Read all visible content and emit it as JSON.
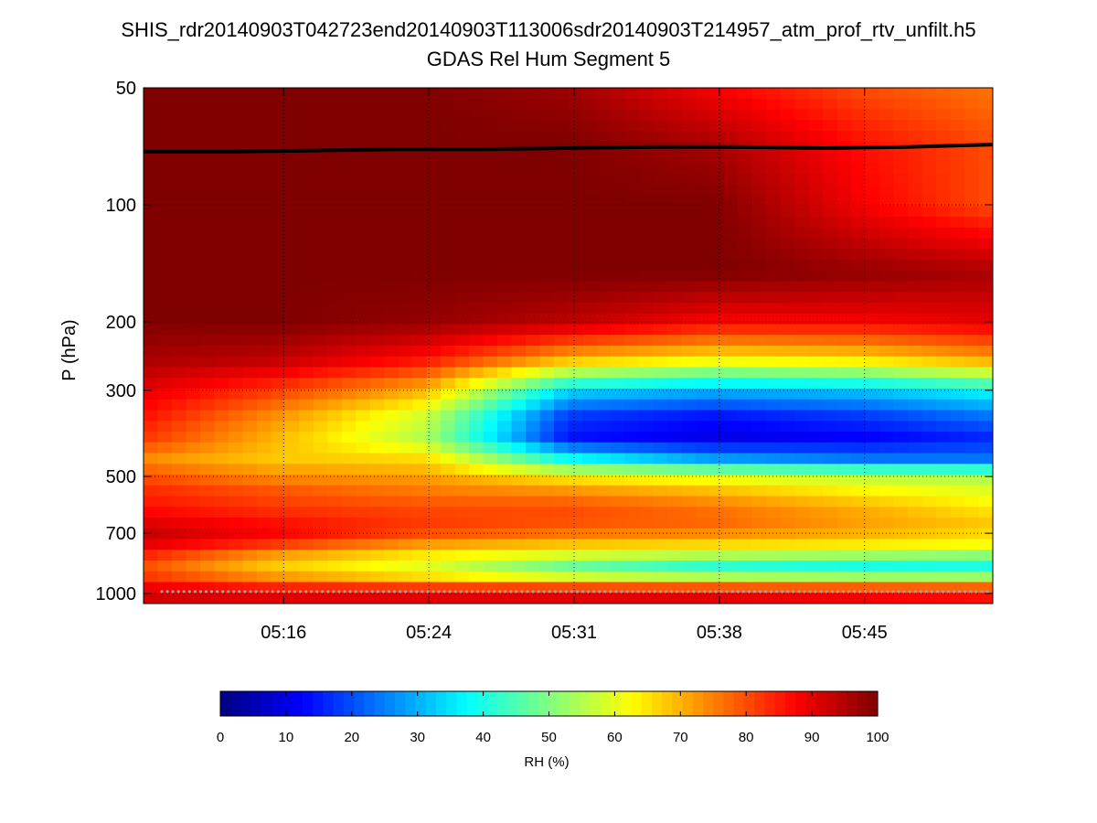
{
  "chart_data": {
    "type": "heatmap",
    "title": "SHIS_rdr20140903T042723end20140903T113006sdr20140903T214957_atm_prof_rtv_unfilt.h5",
    "subtitle": "GDAS Rel Hum Segment 5",
    "xlabel": "",
    "ylabel": "P (hPa)",
    "y_scale": "log",
    "y_reversed": true,
    "ylim": [
      1000,
      50
    ],
    "x_ticks": [
      "05:16",
      "05:24",
      "05:31",
      "05:38",
      "05:45"
    ],
    "y_ticks": [
      50,
      100,
      200,
      300,
      500,
      700,
      1000
    ],
    "grid": true,
    "colormap": "jet",
    "colorbar": {
      "label": "RH (%)",
      "range": [
        0,
        100
      ],
      "ticks": [
        0,
        10,
        20,
        30,
        40,
        50,
        60,
        70,
        80,
        90,
        100
      ],
      "orientation": "horizontal"
    },
    "time_fraction_start": 0.0,
    "time_fraction_end": 1.0,
    "rh_profiles": {
      "pressure_hPa": [
        1000,
        950,
        900,
        850,
        800,
        750,
        700,
        650,
        600,
        550,
        500,
        450,
        400,
        350,
        300,
        250,
        200,
        150,
        100,
        70,
        50
      ],
      "columns": [
        {
          "time_fraction": 0.0,
          "rh": [
            92,
            88,
            82,
            80,
            84,
            90,
            93,
            90,
            86,
            84,
            80,
            74,
            82,
            86,
            90,
            96,
            100,
            100,
            100,
            100,
            100
          ]
        },
        {
          "time_fraction": 0.15,
          "rh": [
            90,
            82,
            72,
            68,
            72,
            82,
            88,
            86,
            82,
            80,
            74,
            68,
            70,
            74,
            82,
            94,
            100,
            100,
            100,
            100,
            100
          ]
        },
        {
          "time_fraction": 0.33,
          "rh": [
            90,
            78,
            64,
            60,
            64,
            72,
            80,
            82,
            80,
            76,
            72,
            66,
            55,
            58,
            70,
            86,
            98,
            100,
            100,
            100,
            100
          ]
        },
        {
          "time_fraction": 0.5,
          "rh": [
            90,
            76,
            56,
            48,
            58,
            68,
            76,
            80,
            80,
            74,
            64,
            38,
            14,
            18,
            34,
            70,
            94,
            100,
            100,
            100,
            97
          ]
        },
        {
          "time_fraction": 0.67,
          "rh": [
            90,
            74,
            52,
            42,
            54,
            66,
            74,
            78,
            76,
            70,
            60,
            28,
            10,
            14,
            30,
            64,
            88,
            100,
            100,
            96,
            88
          ]
        },
        {
          "time_fraction": 0.85,
          "rh": [
            88,
            74,
            50,
            40,
            52,
            64,
            70,
            72,
            70,
            64,
            56,
            24,
            12,
            18,
            32,
            66,
            88,
            98,
            88,
            86,
            80
          ]
        },
        {
          "time_fraction": 1.0,
          "rh": [
            86,
            74,
            50,
            40,
            50,
            62,
            66,
            68,
            64,
            60,
            54,
            24,
            16,
            24,
            38,
            72,
            90,
            96,
            80,
            80,
            76
          ]
        }
      ]
    },
    "overlay_line": {
      "color": "#000000",
      "time_fraction": [
        0.0,
        0.1,
        0.2,
        0.3,
        0.4,
        0.5,
        0.6,
        0.7,
        0.8,
        0.9,
        1.0
      ],
      "pressure_hPa": [
        73,
        73,
        72.5,
        72,
        72,
        71.5,
        71,
        71,
        71.5,
        71,
        70
      ]
    },
    "surface_markers": {
      "color": "#a0a0a0",
      "pressure_hPa": 1000
    }
  }
}
